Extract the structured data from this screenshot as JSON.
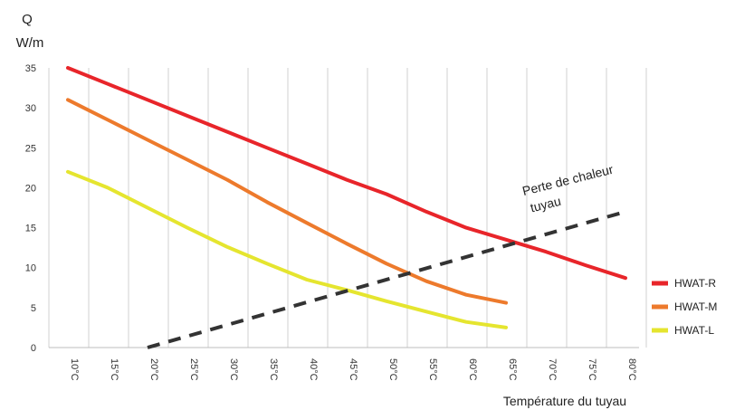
{
  "chart_data": {
    "type": "line",
    "ylabel_line1": "Q",
    "ylabel_line2": "W/m",
    "xlabel": "Température du tuyau",
    "categories": [
      "10°C",
      "15°C",
      "20°C",
      "25°C",
      "30°C",
      "35°C",
      "40°C",
      "45°C",
      "50°C",
      "55°C",
      "60°C",
      "65°C",
      "70°C",
      "75°C",
      "80°C"
    ],
    "x": [
      10,
      15,
      20,
      25,
      30,
      35,
      40,
      45,
      50,
      55,
      60,
      65,
      70,
      75,
      80
    ],
    "xlim": [
      10,
      80
    ],
    "ylim": [
      0,
      35
    ],
    "yticks": [
      "0",
      "5",
      "10",
      "15",
      "20",
      "25",
      "30",
      "35"
    ],
    "ytick_values": [
      0,
      5,
      10,
      15,
      20,
      25,
      30,
      35
    ],
    "grid": "vertical",
    "legend_position": "right",
    "series": [
      {
        "name": "HWAT-R",
        "color": "#e8252a",
        "style": "solid",
        "points": [
          [
            10,
            35
          ],
          [
            15,
            33
          ],
          [
            20,
            31
          ],
          [
            25,
            29
          ],
          [
            30,
            27
          ],
          [
            35,
            25
          ],
          [
            40,
            23
          ],
          [
            45,
            21
          ],
          [
            50,
            19.2
          ],
          [
            55,
            17
          ],
          [
            60,
            15
          ],
          [
            65,
            13.5
          ],
          [
            70,
            12
          ],
          [
            75,
            10.3
          ],
          [
            80,
            8.7
          ]
        ]
      },
      {
        "name": "HWAT-M",
        "color": "#ed7a2c",
        "style": "solid",
        "points": [
          [
            10,
            31
          ],
          [
            15,
            28.5
          ],
          [
            20,
            26
          ],
          [
            25,
            23.5
          ],
          [
            30,
            21
          ],
          [
            35,
            18.2
          ],
          [
            40,
            15.6
          ],
          [
            45,
            13
          ],
          [
            50,
            10.5
          ],
          [
            55,
            8.3
          ],
          [
            60,
            6.6
          ],
          [
            65,
            5.6
          ]
        ]
      },
      {
        "name": "HWAT-L",
        "color": "#e5e52f",
        "style": "solid",
        "points": [
          [
            10,
            22
          ],
          [
            15,
            20
          ],
          [
            20,
            17.5
          ],
          [
            25,
            15
          ],
          [
            30,
            12.6
          ],
          [
            35,
            10.5
          ],
          [
            40,
            8.5
          ],
          [
            45,
            7.2
          ],
          [
            50,
            5.8
          ],
          [
            55,
            4.5
          ],
          [
            60,
            3.2
          ],
          [
            65,
            2.5
          ]
        ]
      },
      {
        "name": "",
        "color": "#333333",
        "style": "dashed",
        "points": [
          [
            20,
            0
          ],
          [
            80,
            17
          ]
        ]
      }
    ],
    "annotation": {
      "line1": "Perte de chaleur",
      "line2": "tuyau"
    }
  }
}
